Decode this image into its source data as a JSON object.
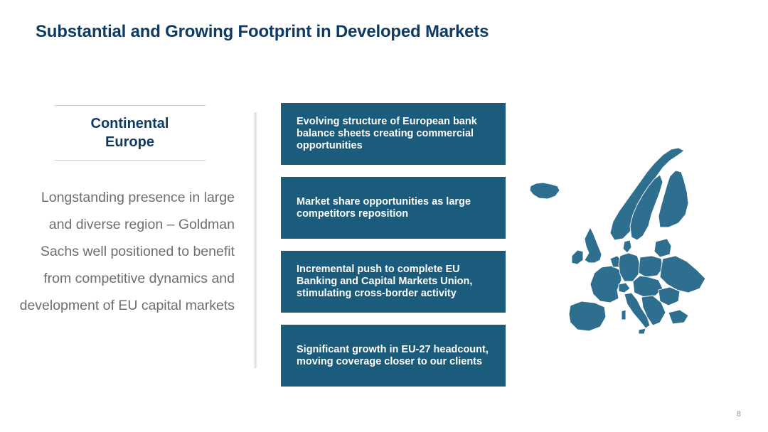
{
  "slide": {
    "title": "Substantial and Growing Footprint in Developed Markets",
    "page_number": "8"
  },
  "region": {
    "title": "Continental Europe",
    "description": "Longstanding presence in large and diverse region – Goldman Sachs well positioned to benefit from competitive dynamics and development of EU capital markets"
  },
  "cards": [
    "Evolving structure of European bank balance sheets creating commercial opportunities",
    "Market share opportunities as large competitors reposition",
    "Incremental push to complete EU Banking and Capital Markets Union, stimulating cross-border activity",
    "Significant growth in EU-27 headcount, moving coverage closer to our clients"
  ],
  "colors": {
    "title": "#0d3b66",
    "card_fill": "#1b5b7c",
    "map_fill": "#2e6e8e",
    "map_stroke": "#ffffff",
    "body_text": "#6e6e6e"
  },
  "icons": {
    "map": "europe-map-icon"
  }
}
